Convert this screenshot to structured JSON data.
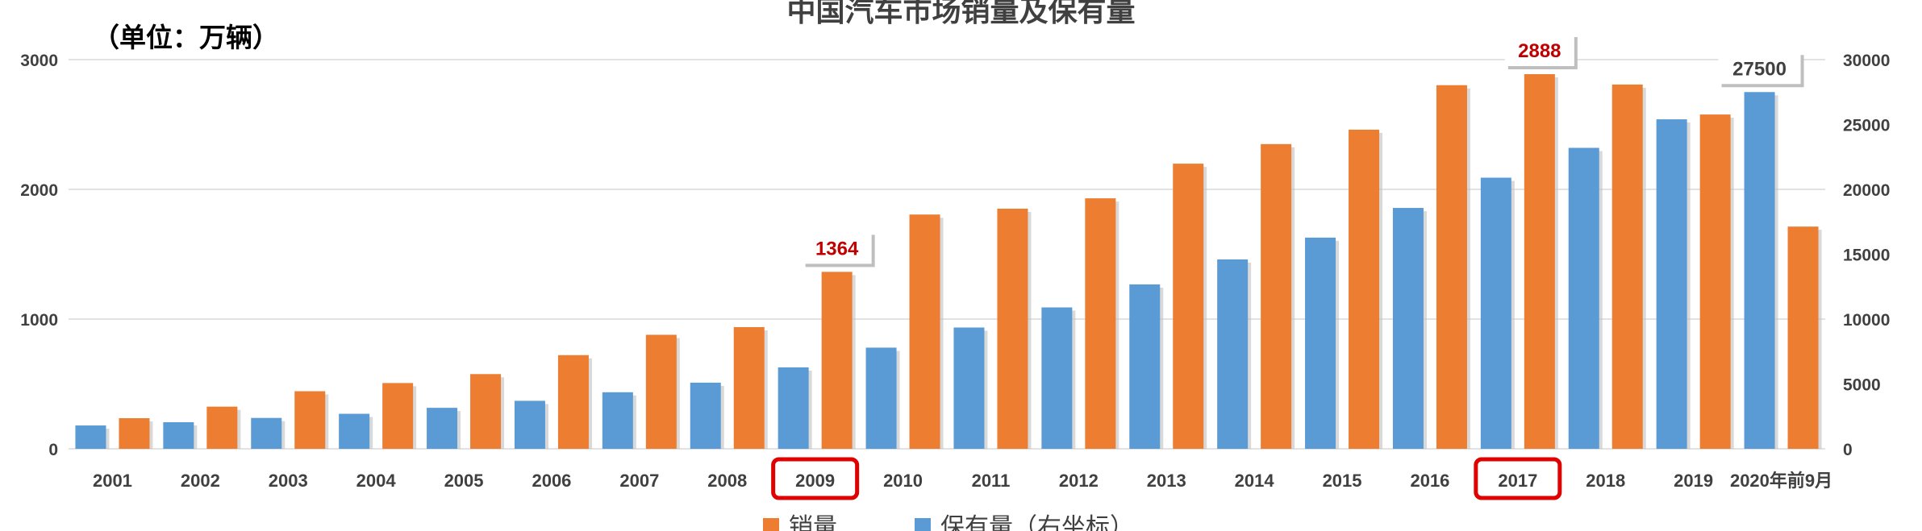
{
  "title": "中国汽车市场销量及保有量",
  "unit_label": "（单位：万辆）",
  "chart_data": {
    "type": "bar",
    "categories": [
      "2001",
      "2002",
      "2003",
      "2004",
      "2005",
      "2006",
      "2007",
      "2008",
      "2009",
      "2010",
      "2011",
      "2012",
      "2013",
      "2014",
      "2015",
      "2016",
      "2017",
      "2018",
      "2019",
      "2020年前9月"
    ],
    "series": [
      {
        "name": "保有量（右坐标）",
        "axis": "right",
        "color": "#5B9BD5",
        "values": [
          1800,
          2050,
          2380,
          2700,
          3160,
          3700,
          4360,
          5100,
          6280,
          7800,
          9350,
          10900,
          12670,
          14600,
          16280,
          18570,
          20900,
          23200,
          25400,
          27500
        ]
      },
      {
        "name": "销量",
        "axis": "left",
        "color": "#ED7D31",
        "values": [
          236,
          325,
          444,
          507,
          576,
          722,
          879,
          938,
          1364,
          1806,
          1851,
          1931,
          2198,
          2349,
          2460,
          2803,
          2888,
          2808,
          2577,
          1713
        ]
      }
    ],
    "left_axis": {
      "ylim": [
        0,
        3000
      ],
      "ticks": [
        "0",
        "1000",
        "2000",
        "3000"
      ]
    },
    "right_axis": {
      "ylim": [
        0,
        30000
      ],
      "ticks": [
        "0",
        "5000",
        "10000",
        "15000",
        "20000",
        "25000",
        "30000"
      ]
    },
    "grid": true,
    "legend_position": "bottom",
    "annotations": [
      {
        "category": "2009",
        "series": "销量",
        "text": "1364",
        "color": "#C00000"
      },
      {
        "category": "2017",
        "series": "销量",
        "text": "2888",
        "color": "#C00000"
      },
      {
        "category": "2020年前9月",
        "series": "保有量（右坐标）",
        "text": "27500",
        "color": "#404040"
      }
    ],
    "highlighted_categories": [
      "2009",
      "2017"
    ],
    "highlight_color": "#E00000"
  }
}
